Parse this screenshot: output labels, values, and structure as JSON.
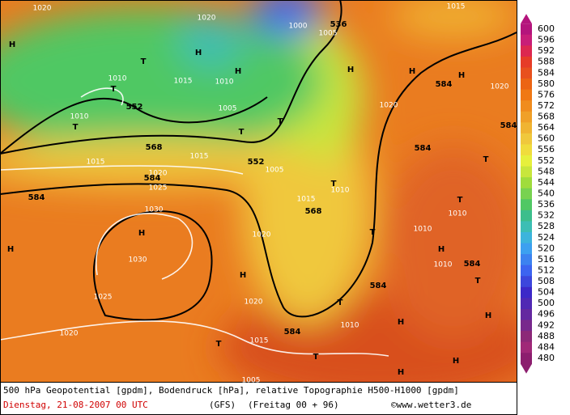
{
  "map": {
    "labels": [
      "1020",
      "1015",
      "H",
      "1020",
      "H",
      "T",
      "H",
      "1010",
      "1015",
      "1010",
      "T",
      "552",
      "1005",
      "1010",
      "T",
      "T",
      "T",
      "1000",
      "536",
      "1005",
      "H",
      "H",
      "584",
      "H",
      "1020",
      "1020",
      "584",
      "584",
      "T",
      "568",
      "1015",
      "1015",
      "552",
      "1005",
      "1020",
      "584",
      "1025",
      "584",
      "1015",
      "T",
      "1010",
      "568",
      "T",
      "1010",
      "1030",
      "H",
      "H",
      "1020",
      "T",
      "1010",
      "H",
      "1010",
      "584",
      "1030",
      "H",
      "584",
      "T",
      "1025",
      "1020",
      "T",
      "584",
      "1010",
      "H",
      "H",
      "1020",
      "1015",
      "T",
      "T",
      "H",
      "H",
      "1005"
    ]
  },
  "legend": {
    "values": [
      600,
      596,
      592,
      588,
      584,
      580,
      576,
      572,
      568,
      564,
      560,
      556,
      552,
      548,
      544,
      540,
      536,
      532,
      528,
      524,
      520,
      516,
      512,
      508,
      504,
      500,
      496,
      492,
      488,
      484,
      480
    ],
    "colors": [
      "#b4147c",
      "#c81e78",
      "#dc2850",
      "#e63c28",
      "#e8501e",
      "#ec6414",
      "#f07814",
      "#f08c1e",
      "#f0a028",
      "#f0b432",
      "#f0c83c",
      "#f0dc3c",
      "#e6f03c",
      "#c8e63c",
      "#a0dc3c",
      "#78d250",
      "#50c864",
      "#3cbe8c",
      "#3cbeb4",
      "#3cb4dc",
      "#3ca0f0",
      "#3c82f0",
      "#3c64f0",
      "#3c46dc",
      "#3c28c8",
      "#5028b4",
      "#6428a0",
      "#78288c",
      "#8c2878",
      "#a02878",
      "#8c1e6e"
    ]
  },
  "footer": {
    "line1": "500 hPa Geopotential [gpdm], Bodendruck [hPa], relative Topographie H500-H1000 [gpdm]",
    "date": "Dienstag, 21-08-2007  00 UTC",
    "model": "(GFS)",
    "forecast": "(Freitag 00 + 96)",
    "credit": "©www.wetter3.de"
  }
}
